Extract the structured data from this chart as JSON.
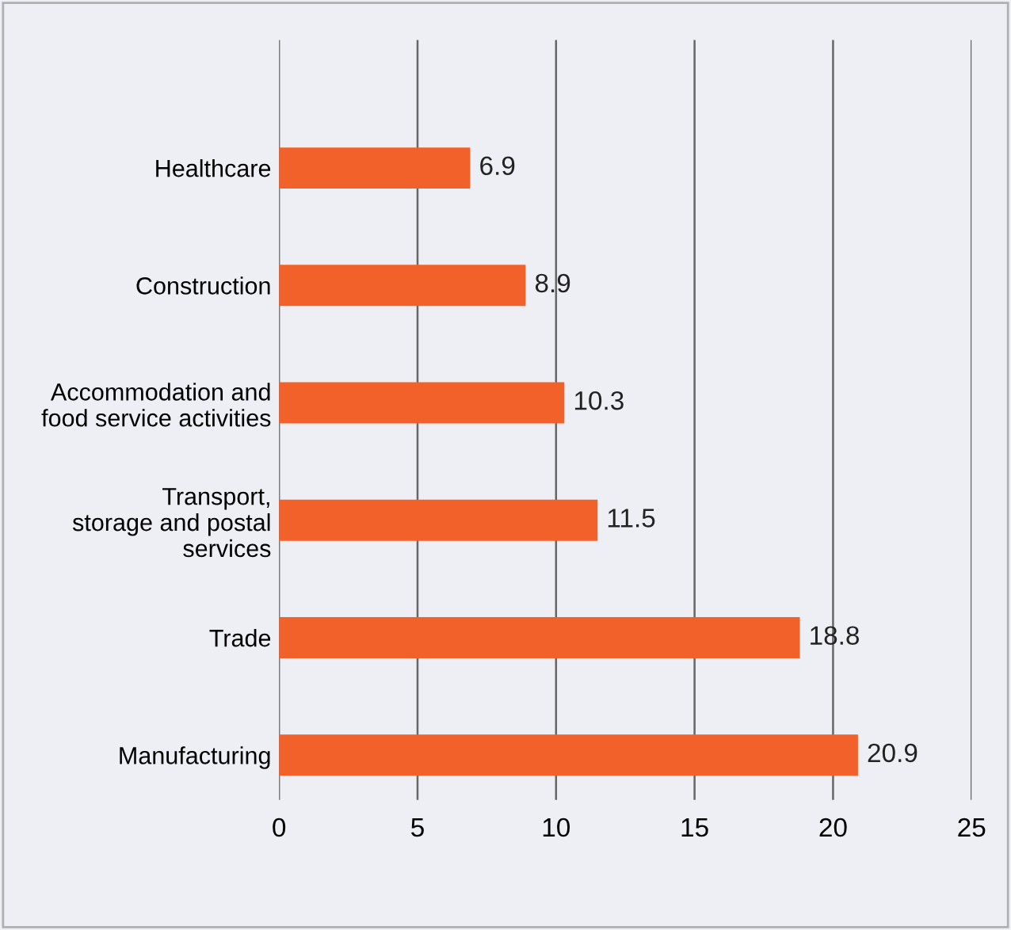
{
  "chart_data": {
    "type": "bar",
    "orientation": "horizontal",
    "categories": [
      "Healthcare",
      "Construction",
      "Accommodation and\nfood service activities",
      "Transport,\nstorage and postal\nservices",
      "Trade",
      "Manufacturing"
    ],
    "values": [
      6.9,
      8.9,
      10.3,
      11.5,
      18.8,
      20.9
    ],
    "color": "#f26129",
    "data_labels": true,
    "xlim": [
      0,
      25
    ],
    "xticks": [
      0,
      5,
      10,
      15,
      20,
      25
    ],
    "grid": "x",
    "legend": false
  }
}
